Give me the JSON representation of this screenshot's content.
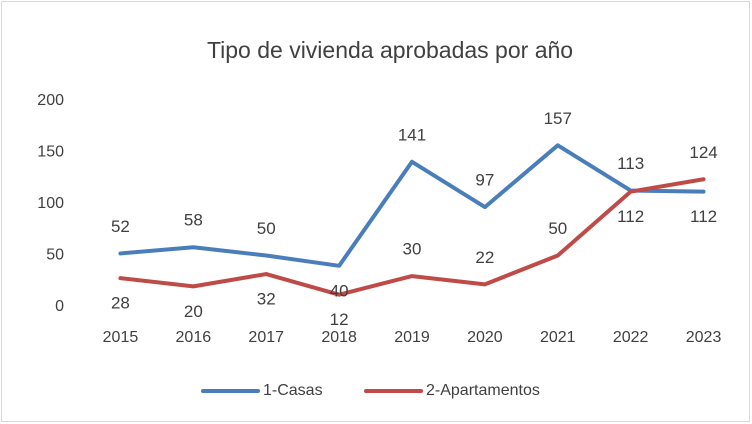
{
  "chart_data": {
    "type": "line",
    "title": "Tipo de vivienda aprobadas por año",
    "categories": [
      "2015",
      "2016",
      "2017",
      "2018",
      "2019",
      "2020",
      "2021",
      "2022",
      "2023"
    ],
    "series": [
      {
        "name": "1-Casas",
        "color": "#4a7ebb",
        "values": [
          52,
          58,
          50,
          40,
          141,
          97,
          157,
          113,
          112
        ]
      },
      {
        "name": "2-Apartamentos",
        "color": "#be4b48",
        "values": [
          28,
          20,
          32,
          12,
          30,
          22,
          50,
          112,
          124
        ]
      }
    ],
    "ylim": [
      0,
      200
    ],
    "yticks": [
      0,
      50,
      100,
      150,
      200
    ],
    "grid": false,
    "legend": "bottom"
  }
}
